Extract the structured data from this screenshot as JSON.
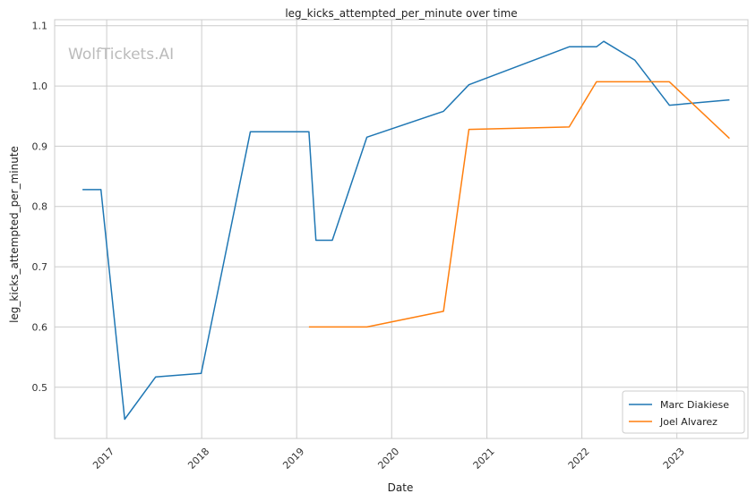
{
  "chart_data": {
    "type": "line",
    "title": "leg_kicks_attempted_per_minute over time",
    "xlabel": "Date",
    "ylabel": "leg_kicks_attempted_per_minute",
    "x_ticks": [
      "2017",
      "2018",
      "2019",
      "2020",
      "2021",
      "2022",
      "2023"
    ],
    "y_ticks": [
      "0.5",
      "0.6",
      "0.7",
      "0.8",
      "0.9",
      "1.0",
      "1.1"
    ],
    "xlim": [
      "2016-06-15",
      "2023-10-01"
    ],
    "ylim": [
      0.415,
      1.11
    ],
    "grid": true,
    "legend_position": "lower right",
    "watermark": "WolfTickets.AI",
    "series": [
      {
        "name": "Marc Diakiese",
        "color": "#1f77b4",
        "points": [
          [
            "2016-09-30",
            0.828
          ],
          [
            "2016-12-10",
            0.828
          ],
          [
            "2017-03-11",
            0.447
          ],
          [
            "2017-07-08",
            0.517
          ],
          [
            "2017-12-30",
            0.523
          ],
          [
            "2018-07-07",
            0.924
          ],
          [
            "2019-02-17",
            0.924
          ],
          [
            "2019-03-16",
            0.744
          ],
          [
            "2019-05-18",
            0.744
          ],
          [
            "2019-09-28",
            0.915
          ],
          [
            "2020-07-18",
            0.958
          ],
          [
            "2020-10-24",
            1.002
          ],
          [
            "2021-11-13",
            1.065
          ],
          [
            "2022-02-26",
            1.065
          ],
          [
            "2022-03-26",
            1.074
          ],
          [
            "2022-07-23",
            1.043
          ],
          [
            "2022-12-03",
            0.968
          ],
          [
            "2023-07-22",
            0.977
          ]
        ]
      },
      {
        "name": "Joel Alvarez",
        "color": "#ff7f0e",
        "points": [
          [
            "2019-02-17",
            0.6
          ],
          [
            "2019-09-28",
            0.6
          ],
          [
            "2020-07-18",
            0.626
          ],
          [
            "2020-10-24",
            0.928
          ],
          [
            "2021-11-13",
            0.932
          ],
          [
            "2022-02-26",
            1.007
          ],
          [
            "2022-12-03",
            1.007
          ],
          [
            "2023-07-22",
            0.913
          ]
        ]
      }
    ]
  }
}
